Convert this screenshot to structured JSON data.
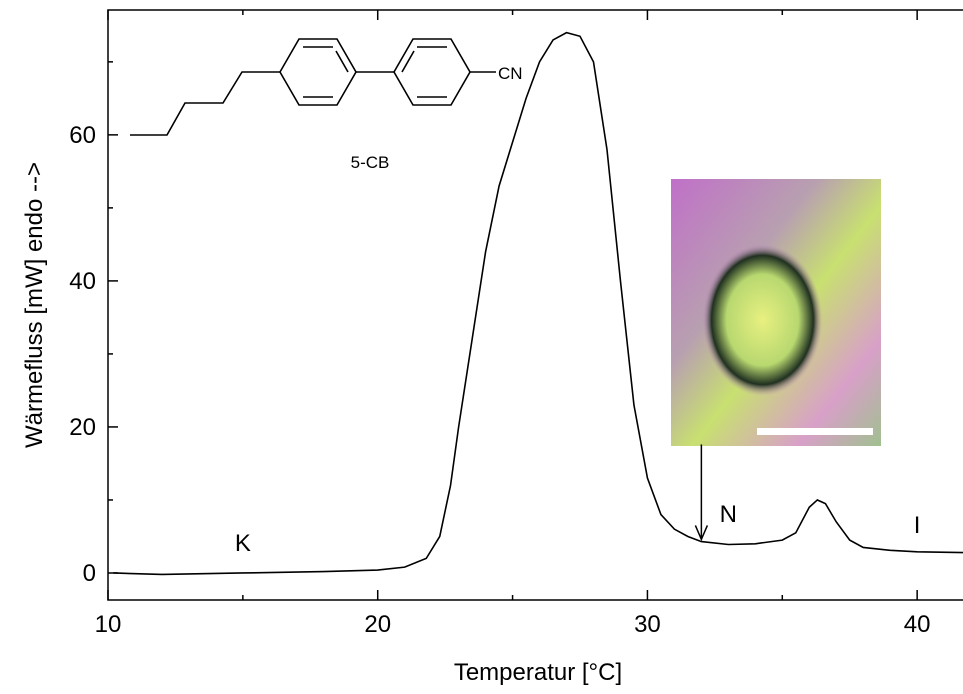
{
  "chart_data": {
    "type": "line",
    "x_label": "Temperatur [°C]",
    "y_label": "Wärmefluss [mW]   endo -->",
    "xlim": [
      10,
      41.7
    ],
    "ylim": [
      -3.7,
      77.1
    ],
    "xticks": [
      10,
      20,
      30,
      40
    ],
    "yticks": [
      0,
      20,
      40,
      60
    ],
    "xminor": [
      15,
      25,
      35
    ],
    "yminor": [
      10,
      30,
      50,
      70
    ],
    "series": [
      {
        "color": "#000000",
        "x": [
          10.2,
          12,
          15,
          18,
          20,
          21,
          21.8,
          22.3,
          22.7,
          23,
          23.5,
          24,
          24.5,
          25,
          25.5,
          26,
          26.5,
          27,
          27.5,
          28,
          28.5,
          29,
          29.5,
          30,
          30.5,
          31,
          31.5,
          32,
          33,
          34,
          35,
          35.5,
          36,
          36.3,
          36.6,
          37,
          37.5,
          38,
          39,
          40,
          41.7
        ],
        "values": [
          0,
          -0.2,
          0,
          0.2,
          0.4,
          0.8,
          2,
          5,
          12,
          20,
          32,
          44,
          53,
          59,
          65,
          70,
          73,
          74,
          73.5,
          70,
          58,
          40,
          23,
          13,
          8,
          6,
          5,
          4.3,
          3.9,
          4,
          4.5,
          5.5,
          9,
          10,
          9.5,
          7,
          4.5,
          3.5,
          3.1,
          2.9,
          2.8
        ]
      }
    ],
    "annotations": [
      {
        "text": "K",
        "x": 15,
        "y": 3
      },
      {
        "text": "N",
        "x": 33,
        "y": 7
      },
      {
        "text": "I",
        "x": 40,
        "y": 5.5
      }
    ],
    "arrow": {
      "x": 32,
      "y_start": 17.6,
      "y_end": 4.6
    },
    "molecule_name": "5-CB",
    "molecule_group": "CN"
  }
}
